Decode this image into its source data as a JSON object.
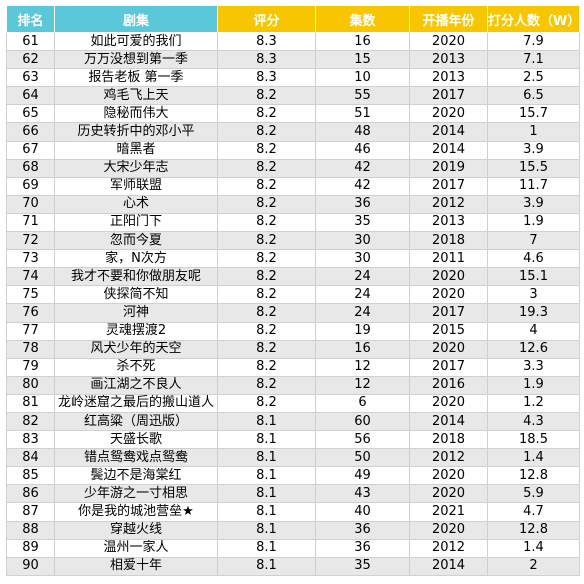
{
  "headers": [
    "排名",
    "剧集",
    "评分",
    "集数",
    "开播年份",
    "打分人数（W）"
  ],
  "colors": {
    "header_blue": "#5bc8d9",
    "header_yellow": "#f7c600",
    "row_alt": "#e8e8e8"
  },
  "rows": [
    [
      "61",
      "如此可爱的我们",
      "8.3",
      "16",
      "2020",
      "7.9"
    ],
    [
      "62",
      "万万没想到第一季",
      "8.3",
      "15",
      "2013",
      "7.1"
    ],
    [
      "63",
      "报告老板 第一季",
      "8.3",
      "10",
      "2013",
      "2.5"
    ],
    [
      "64",
      "鸡毛飞上天",
      "8.2",
      "55",
      "2017",
      "6.5"
    ],
    [
      "65",
      "隐秘而伟大",
      "8.2",
      "51",
      "2020",
      "15.7"
    ],
    [
      "66",
      "历史转折中的邓小平",
      "8.2",
      "48",
      "2014",
      "1"
    ],
    [
      "67",
      "暗黑者",
      "8.2",
      "46",
      "2014",
      "3.9"
    ],
    [
      "68",
      "大宋少年志",
      "8.2",
      "42",
      "2019",
      "15.5"
    ],
    [
      "69",
      "军师联盟",
      "8.2",
      "42",
      "2017",
      "11.7"
    ],
    [
      "70",
      "心术",
      "8.2",
      "36",
      "2012",
      "3.9"
    ],
    [
      "71",
      "正阳门下",
      "8.2",
      "35",
      "2013",
      "1.9"
    ],
    [
      "72",
      "忽而今夏",
      "8.2",
      "30",
      "2018",
      "7"
    ],
    [
      "73",
      "家，N次方",
      "8.2",
      "30",
      "2011",
      "4.6"
    ],
    [
      "74",
      "我才不要和你做朋友呢",
      "8.2",
      "24",
      "2020",
      "15.1"
    ],
    [
      "75",
      "侠探简不知",
      "8.2",
      "24",
      "2020",
      "3"
    ],
    [
      "76",
      "河神",
      "8.2",
      "24",
      "2017",
      "19.3"
    ],
    [
      "77",
      "灵魂摆渡2",
      "8.2",
      "19",
      "2015",
      "4"
    ],
    [
      "78",
      "风犬少年的天空",
      "8.2",
      "16",
      "2020",
      "12.6"
    ],
    [
      "79",
      "杀不死",
      "8.2",
      "12",
      "2017",
      "3.3"
    ],
    [
      "80",
      "画江湖之不良人",
      "8.2",
      "12",
      "2016",
      "1.9"
    ],
    [
      "81",
      "龙岭迷窟之最后的搬山道人",
      "8.2",
      "6",
      "2020",
      "1.2"
    ],
    [
      "82",
      "红高粱（周迅版）",
      "8.1",
      "60",
      "2014",
      "4.3"
    ],
    [
      "83",
      "天盛长歌",
      "8.1",
      "56",
      "2018",
      "18.5"
    ],
    [
      "84",
      "错点鸳鸯戏点鸳鸯",
      "8.1",
      "50",
      "2012",
      "1.4"
    ],
    [
      "85",
      "鬓边不是海棠红",
      "8.1",
      "49",
      "2020",
      "12.8"
    ],
    [
      "86",
      "少年游之一寸相思",
      "8.1",
      "43",
      "2020",
      "5.9"
    ],
    [
      "87",
      "你是我的城池营垒★",
      "8.1",
      "40",
      "2021",
      "4.7"
    ],
    [
      "88",
      "穿越火线",
      "8.1",
      "36",
      "2020",
      "12.8"
    ],
    [
      "89",
      "温州一家人",
      "8.1",
      "36",
      "2012",
      "1.4"
    ],
    [
      "90",
      "相爱十年",
      "8.1",
      "35",
      "2014",
      "2"
    ]
  ]
}
